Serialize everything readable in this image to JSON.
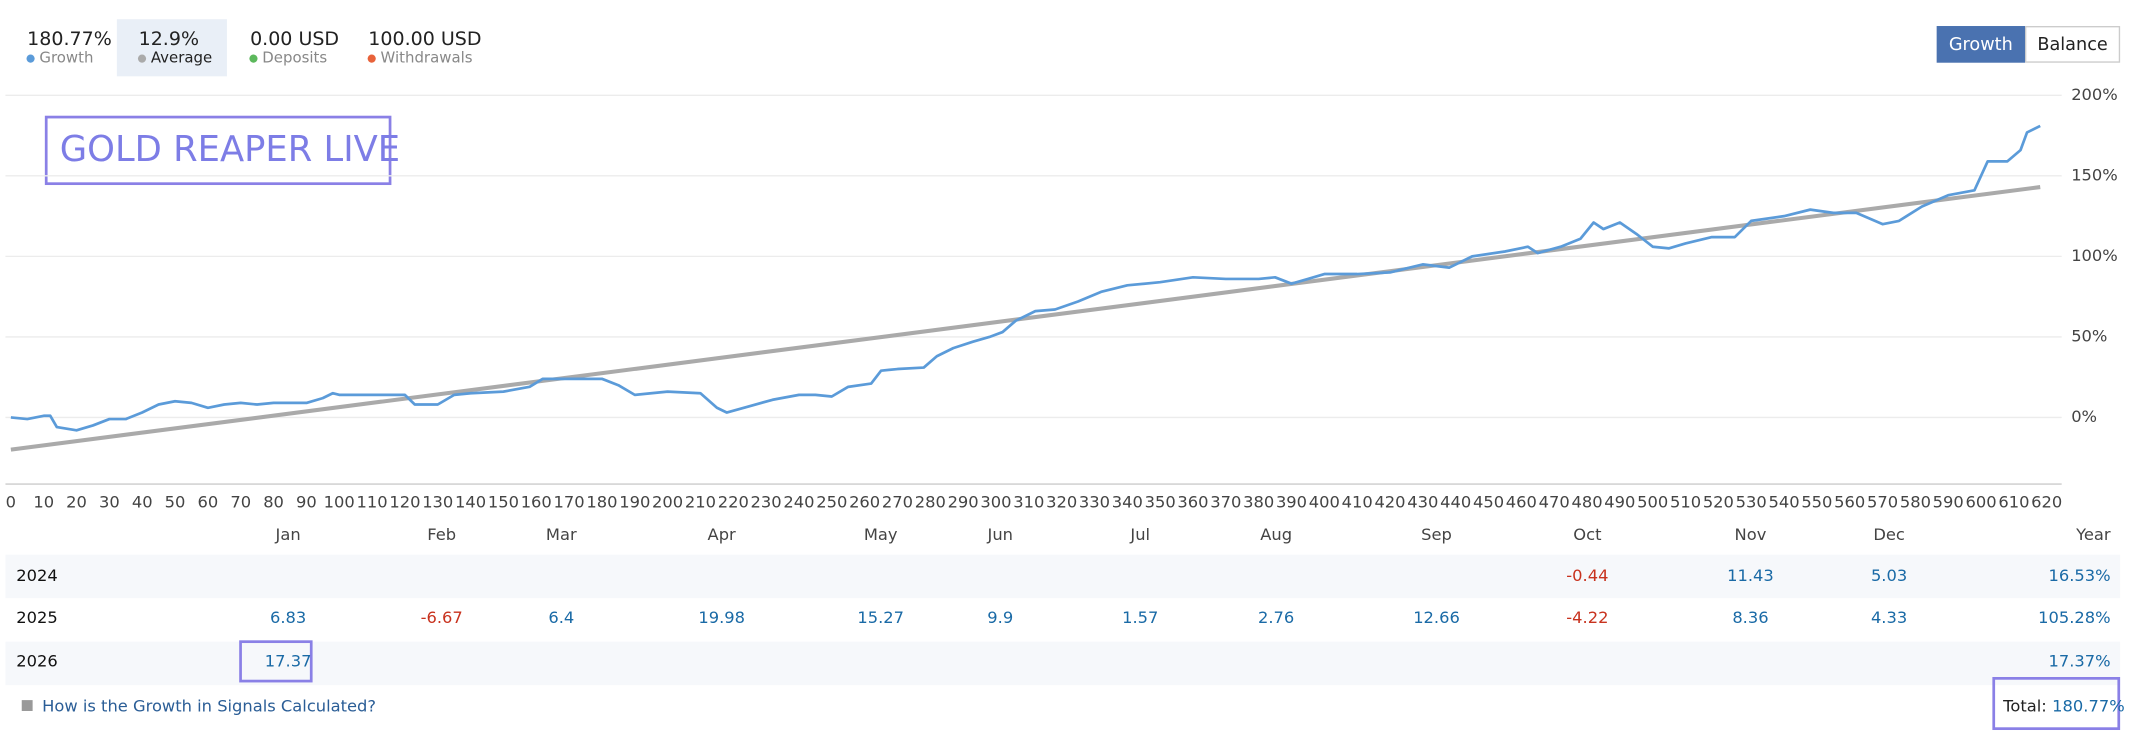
{
  "flows": [
    {
      "stat": "0.00 USD",
      "name": "Deposits",
      "color": "#5cb85c"
    },
    {
      "stat": "100.00 USD",
      "name": "Withdrawals",
      "color": "#e8623a"
    }
  ],
  "buttons": [
    "Growth",
    "Balance"
  ],
  "chart_data": {
    "type": "line",
    "title": "GOLD REAPER LIVE",
    "series": [
      {
        "name": "Growth",
        "stat": "180.77%",
        "color": "#5b9bd9",
        "x": [
          0,
          5,
          10,
          12,
          14,
          20,
          25,
          30,
          35,
          40,
          45,
          50,
          55,
          60,
          65,
          70,
          75,
          80,
          90,
          95,
          98,
          100,
          110,
          120,
          123,
          130,
          135,
          140,
          150,
          158,
          162,
          170,
          180,
          185,
          190,
          195,
          200,
          210,
          215,
          218,
          225,
          232,
          240,
          245,
          250,
          255,
          262,
          265,
          270,
          278,
          282,
          287,
          293,
          298,
          302,
          306,
          312,
          318,
          325,
          332,
          340,
          350,
          360,
          370,
          380,
          385,
          390,
          395,
          400,
          410,
          420,
          430,
          438,
          445,
          455,
          462,
          465,
          472,
          478,
          482,
          485,
          490,
          495,
          500,
          505,
          510,
          518,
          525,
          530,
          540,
          548,
          555,
          562,
          570,
          575,
          582,
          590,
          598,
          602,
          608,
          612,
          614,
          618
        ],
        "values": [
          0,
          -1,
          1,
          1,
          -6,
          -8,
          -5,
          -1,
          -1,
          3,
          8,
          10,
          9,
          6,
          8,
          9,
          8,
          9,
          9,
          12,
          15,
          14,
          14,
          14,
          8,
          8,
          14,
          15,
          16,
          19,
          24,
          24,
          24,
          20,
          14,
          15,
          16,
          15,
          6,
          3,
          7,
          11,
          14,
          14,
          13,
          19,
          21,
          29,
          30,
          31,
          38,
          43,
          47,
          50,
          53,
          60,
          66,
          67,
          72,
          78,
          82,
          84,
          87,
          86,
          86,
          87,
          83,
          86,
          89,
          89,
          90,
          95,
          93,
          100,
          103,
          106,
          102,
          106,
          111,
          121,
          117,
          121,
          114,
          106,
          105,
          108,
          112,
          112,
          122,
          125,
          129,
          127,
          127,
          120,
          122,
          131,
          138,
          141,
          159,
          159,
          166,
          177,
          181
        ]
      },
      {
        "name": "Average",
        "stat": "12.9%",
        "color": "#aaaaaa",
        "x": [
          0,
          618
        ],
        "values": [
          -20,
          143
        ]
      }
    ],
    "xlim": [
      0,
      620
    ],
    "xticks": [
      0,
      10,
      20,
      30,
      40,
      50,
      60,
      70,
      80,
      90,
      100,
      110,
      120,
      130,
      140,
      150,
      160,
      170,
      180,
      190,
      200,
      210,
      220,
      230,
      240,
      250,
      260,
      270,
      280,
      290,
      300,
      310,
      320,
      330,
      340,
      350,
      360,
      370,
      380,
      390,
      400,
      410,
      420,
      430,
      440,
      450,
      460,
      470,
      480,
      490,
      500,
      510,
      520,
      530,
      540,
      550,
      560,
      570,
      580,
      590,
      600,
      610,
      620
    ],
    "ylim": [
      -40,
      200
    ],
    "yticks": [
      {
        "value": 0,
        "label": "0%"
      },
      {
        "value": 50,
        "label": "50%"
      },
      {
        "value": 100,
        "label": "100%"
      },
      {
        "value": 150,
        "label": "150%"
      },
      {
        "value": 200,
        "label": "200%"
      }
    ],
    "grid": true
  },
  "table": {
    "columns": [
      "Jan",
      "Feb",
      "Mar",
      "Apr",
      "May",
      "Jun",
      "Jul",
      "Aug",
      "Sep",
      "Oct",
      "Nov",
      "Dec",
      "Year"
    ],
    "rows": [
      {
        "year": "2024",
        "months": [
          null,
          null,
          null,
          null,
          null,
          null,
          null,
          null,
          null,
          -0.44,
          11.43,
          5.03
        ],
        "total": "16.53%"
      },
      {
        "year": "2025",
        "months": [
          6.83,
          -6.67,
          6.4,
          19.98,
          15.27,
          9.9,
          1.57,
          2.76,
          12.66,
          -4.22,
          8.36,
          4.33
        ],
        "total": "105.28%"
      },
      {
        "year": "2026",
        "months": [
          17.37,
          null,
          null,
          null,
          null,
          null,
          null,
          null,
          null,
          null,
          null,
          null
        ],
        "total": "17.37%"
      }
    ]
  },
  "footer": {
    "link": "How is the Growth in Signals Calculated?",
    "total_label": "Total:",
    "total_value": "180.77%"
  }
}
